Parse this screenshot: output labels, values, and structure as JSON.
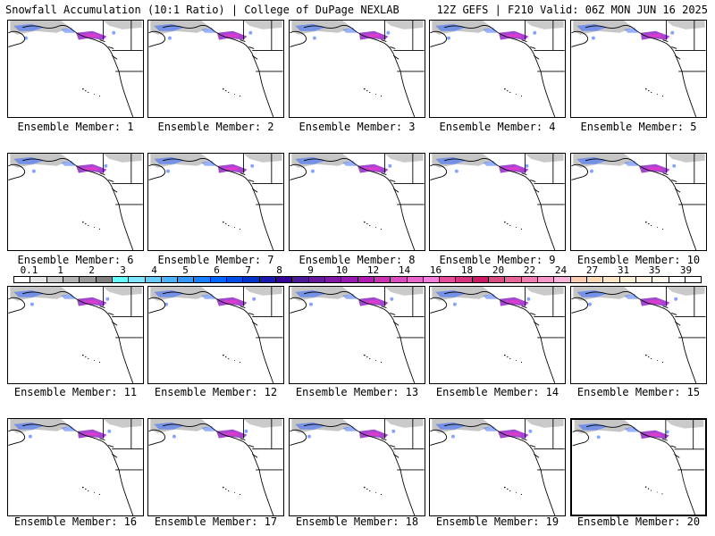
{
  "header": {
    "left": "Snowfall Accumulation (10:1 Ratio) | College of DuPage NEXLAB",
    "right": "12Z GEFS | F210 Valid: 06Z MON JUN 16 2025"
  },
  "map_panels": [
    {
      "label": "Ensemble Member: 1"
    },
    {
      "label": "Ensemble Member: 2"
    },
    {
      "label": "Ensemble Member: 3"
    },
    {
      "label": "Ensemble Member: 4"
    },
    {
      "label": "Ensemble Member: 5"
    },
    {
      "label": "Ensemble Member: 6"
    },
    {
      "label": "Ensemble Member: 7"
    },
    {
      "label": "Ensemble Member: 8"
    },
    {
      "label": "Ensemble Member: 9"
    },
    {
      "label": "Ensemble Member: 10"
    },
    {
      "label": "Ensemble Member: 11"
    },
    {
      "label": "Ensemble Member: 12"
    },
    {
      "label": "Ensemble Member: 13"
    },
    {
      "label": "Ensemble Member: 14"
    },
    {
      "label": "Ensemble Member: 15"
    },
    {
      "label": "Ensemble Member: 16"
    },
    {
      "label": "Ensemble Member: 17"
    },
    {
      "label": "Ensemble Member: 18"
    },
    {
      "label": "Ensemble Member: 19"
    },
    {
      "label": "Ensemble Member: 20"
    }
  ],
  "colorbar": {
    "labels": [
      "0.1",
      "1",
      "2",
      "3",
      "4",
      "5",
      "6",
      "7",
      "8",
      "9",
      "10",
      "12",
      "14",
      "16",
      "18",
      "20",
      "22",
      "24",
      "27",
      "31",
      "35",
      "39"
    ],
    "colors": [
      "#ffffff",
      "#e6e6e6",
      "#cccccc",
      "#b3b3b3",
      "#999999",
      "#808080",
      "#66ffff",
      "#80e6ff",
      "#66ccff",
      "#4db3ff",
      "#3399ff",
      "#1a80ff",
      "#0066ff",
      "#004de6",
      "#0033cc",
      "#1a1ab3",
      "#330099",
      "#4d1a99",
      "#661a99",
      "#801aa6",
      "#991ab3",
      "#b31ab3",
      "#cc33b3",
      "#d94dbf",
      "#e666cc",
      "#f080d9",
      "#e64d99",
      "#d9337f",
      "#cc1a66",
      "#d94d80",
      "#e6669a",
      "#f080b3",
      "#f599cc",
      "#f7b3d9",
      "#faccb3",
      "#fcd9b3",
      "#fde6c6",
      "#fff0d9",
      "#fff5e6",
      "#fffaf0",
      "#ffffff",
      "#ffffff"
    ]
  },
  "map_colors": {
    "coast": "#000000",
    "gray_snow": "#b3b3b3",
    "blue_snow": "#3366ff",
    "purple_snow": "#9933cc",
    "highlight": "#ff33cc"
  }
}
